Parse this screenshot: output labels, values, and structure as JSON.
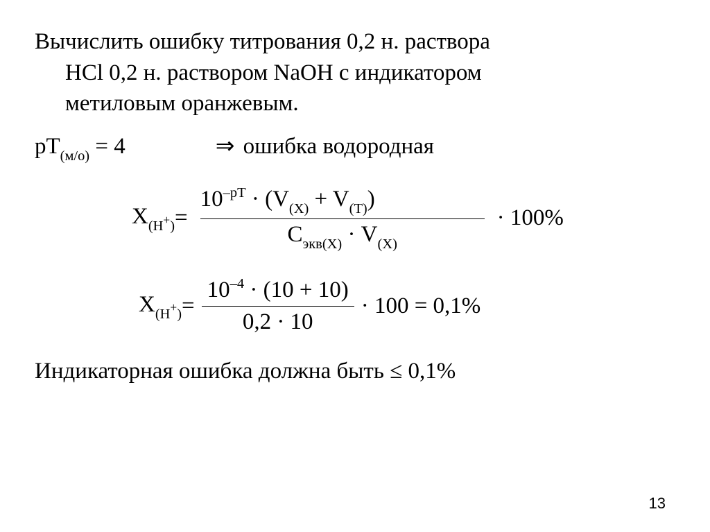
{
  "problem": {
    "line1": "Вычислить ошибку титрования 0,2 н. раствора",
    "line2": "HCl 0,2 н. раствором NaOH с индикатором",
    "line3": "метиловым оранжевым."
  },
  "pt_line": {
    "pT_label": "рТ",
    "pT_sub": "(м/о)",
    "pT_value": " = 4",
    "arrow": "⇒",
    "error_type": "  ошибка водородная"
  },
  "formula1": {
    "lhs_X": "X",
    "lhs_sub_open": "(H",
    "lhs_sup": "+",
    "lhs_sub_close": ")",
    "eq": " = ",
    "num_a": "10",
    "num_exp": "–pT",
    "num_b": " · (V",
    "num_sub1": "(X)",
    "num_c": " + V",
    "num_sub2": "(T)",
    "num_d": ")",
    "den_a": "C",
    "den_sub1": "экв",
    "den_b": "",
    "den_sub2": "(X)",
    "den_c": " · V",
    "den_sub3": "(X)",
    "tail": " · 100%"
  },
  "formula2": {
    "lhs_X": "X",
    "lhs_sub_open": "(H",
    "lhs_sup": "+",
    "lhs_sub_close": ")",
    "eq": " = ",
    "num_a": "10",
    "num_exp": "–4",
    "num_b": " · (10 + 10)",
    "den": "0,2 · 10",
    "tail": " · 100 = 0,1%"
  },
  "conclusion": {
    "text_a": "Индикаторная ошибка должна быть ",
    "le": "≤",
    "text_b": " 0,1%"
  },
  "page_number": "13"
}
